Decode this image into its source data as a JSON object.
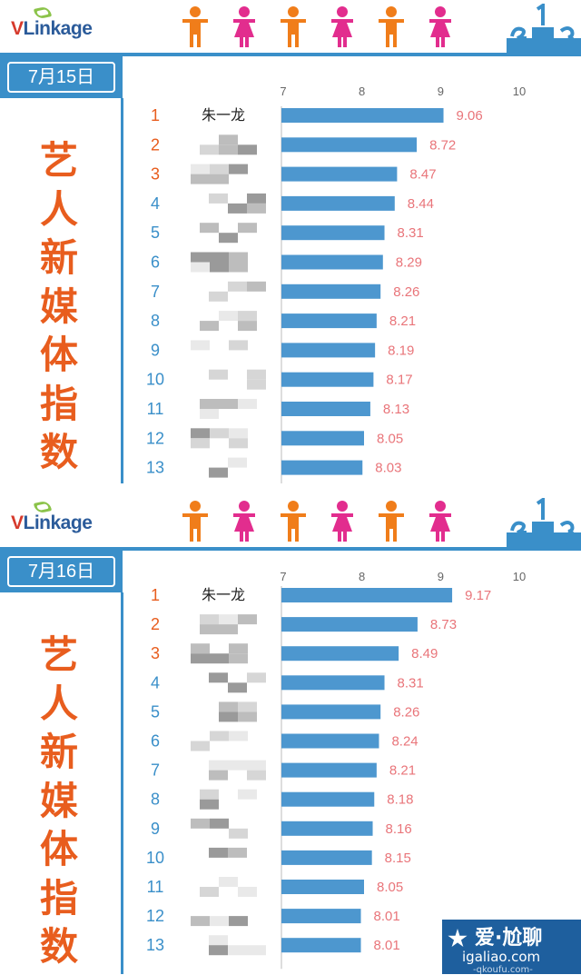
{
  "brand": {
    "v": "V",
    "rest": "Linkage"
  },
  "side_title": [
    "艺",
    "人",
    "新",
    "媒",
    "体",
    "指",
    "数"
  ],
  "panels": [
    {
      "date": "7月15日",
      "top_name": "朱一龙"
    },
    {
      "date": "7月16日",
      "top_name": "朱一龙"
    }
  ],
  "watermark": {
    "text": "爱·尬聊",
    "url": "igaliao.com",
    "sub": "-qkoufu.com-"
  },
  "colors": {
    "bar": "#4d97cf",
    "value": "#e9757a",
    "rank": "#e85d1e",
    "rank_alt": "#3a8fc9",
    "accent": "#3a8fc9",
    "title": "#e85d1e",
    "male": "#f07d1a",
    "female": "#e22d8e"
  },
  "icons": [
    "male-person-icon",
    "female-person-icon",
    "male-person-icon",
    "female-person-icon",
    "male-person-icon",
    "female-person-icon",
    "podium-icon",
    "star-icon"
  ],
  "chart_data": [
    {
      "type": "bar",
      "orientation": "horizontal",
      "title": "7月15日",
      "categories": [
        "1",
        "2",
        "3",
        "4",
        "5",
        "6",
        "7",
        "8",
        "9",
        "10",
        "11",
        "12",
        "13"
      ],
      "labels": [
        "朱一龙",
        "",
        "",
        "",
        "",
        "",
        "",
        "",
        "",
        "",
        "",
        "",
        ""
      ],
      "values": [
        9.06,
        8.72,
        8.47,
        8.44,
        8.31,
        8.29,
        8.26,
        8.21,
        8.19,
        8.17,
        8.13,
        8.05,
        8.03
      ],
      "value_labels": [
        "9.06",
        "8.72",
        "8.47",
        "8.44",
        "8.31",
        "8.29",
        "8.26",
        "8.21",
        "8.19",
        "8.17",
        "8.13",
        "8.05",
        "8.03"
      ],
      "xticks": [
        "7",
        "8",
        "9",
        "10"
      ],
      "xlim": [
        7,
        10
      ],
      "grid": false
    },
    {
      "type": "bar",
      "orientation": "horizontal",
      "title": "7月16日",
      "categories": [
        "1",
        "2",
        "3",
        "4",
        "5",
        "6",
        "7",
        "8",
        "9",
        "10",
        "11",
        "12",
        "13"
      ],
      "labels": [
        "朱一龙",
        "",
        "",
        "",
        "",
        "",
        "",
        "",
        "",
        "",
        "",
        "",
        ""
      ],
      "values": [
        9.17,
        8.73,
        8.49,
        8.31,
        8.26,
        8.24,
        8.21,
        8.18,
        8.16,
        8.15,
        8.05,
        8.01,
        8.01
      ],
      "value_labels": [
        "9.17",
        "8.73",
        "8.49",
        "8.31",
        "8.26",
        "8.24",
        "8.21",
        "8.18",
        "8.16",
        "8.15",
        "8.05",
        "8.01",
        "8.01"
      ],
      "xticks": [
        "7",
        "8",
        "9",
        "10"
      ],
      "xlim": [
        7,
        10
      ],
      "grid": false
    }
  ]
}
